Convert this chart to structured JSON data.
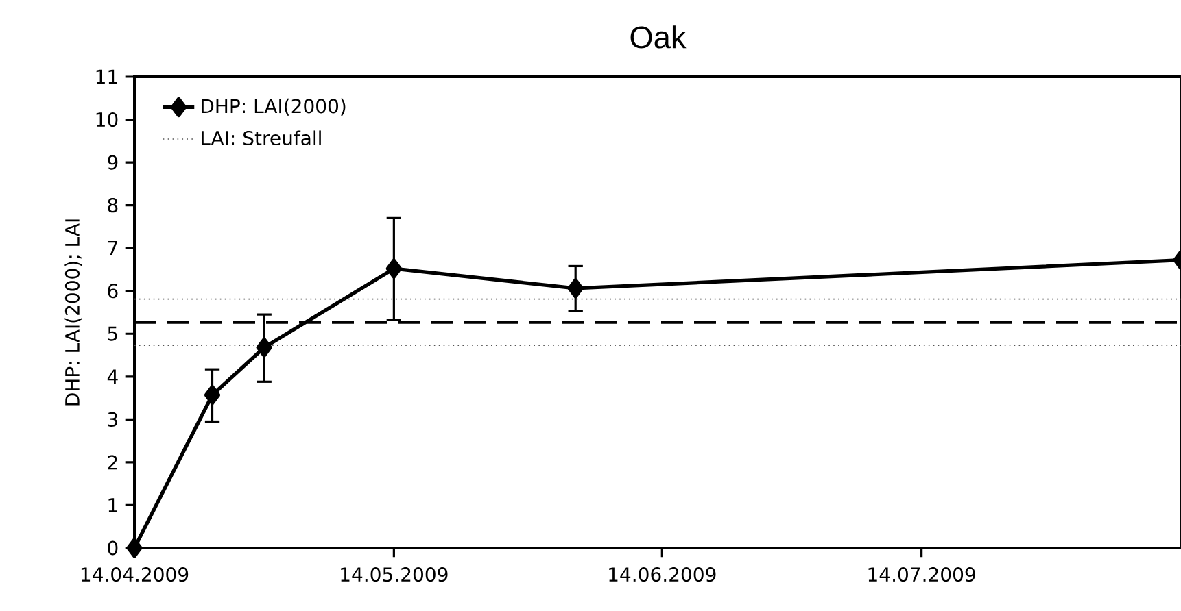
{
  "chart_data": {
    "type": "line",
    "title": "Oak",
    "ylabel": "DHP: LAI(2000); LAI",
    "x": [
      "2009-04-14",
      "2009-04-23",
      "2009-04-29",
      "2009-05-14",
      "2009-06-04",
      "2009-08-13"
    ],
    "series": [
      {
        "name": "DHP: LAI(2000)",
        "color": "#000000",
        "values": [
          0,
          3.57,
          4.68,
          6.52,
          6.06,
          6.72
        ],
        "errors": [
          null,
          [
            2.95,
            4.17
          ],
          [
            3.88,
            5.45
          ],
          [
            5.32,
            7.7
          ],
          [
            5.53,
            6.58
          ],
          null
        ]
      }
    ],
    "xlim": [
      "2009-04-14",
      "2009-08-13"
    ],
    "xticks": [
      {
        "value": "2009-04-14",
        "label": "14.04.2009"
      },
      {
        "value": "2009-05-14",
        "label": "14.05.2009"
      },
      {
        "value": "2009-06-14",
        "label": "14.06.2009"
      },
      {
        "value": "2009-07-14",
        "label": "14.07.2009"
      }
    ],
    "ylim": [
      0,
      11
    ],
    "yticks": [
      0,
      1,
      2,
      3,
      4,
      5,
      6,
      7,
      8,
      9,
      10,
      11
    ],
    "ref_lines": [
      {
        "axis": "y",
        "value": 5.81,
        "label": "LAI: Streufall",
        "line_style": "dotted",
        "color": "#555555"
      },
      {
        "axis": "y",
        "value": 5.27,
        "line_style": "dashed",
        "color": "#000000"
      },
      {
        "axis": "y",
        "value": 4.73,
        "line_style": "dotted",
        "color": "#555555"
      }
    ],
    "marker": "diamond",
    "line_style": "solid",
    "legend": "top left",
    "grid": false
  }
}
